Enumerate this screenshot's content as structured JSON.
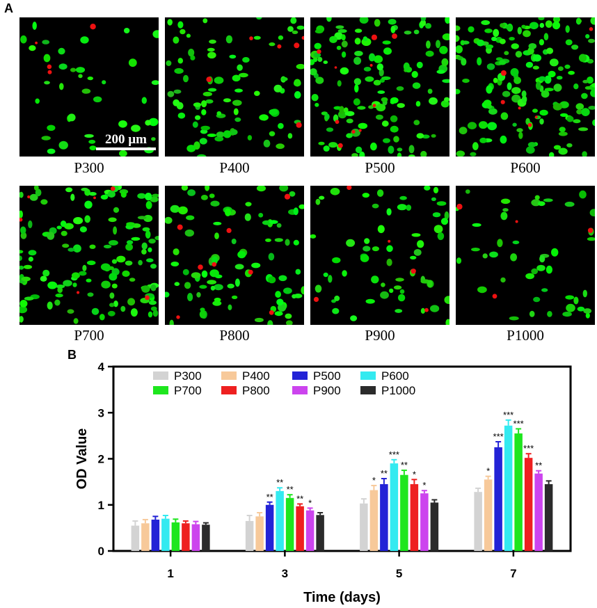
{
  "panel_a": {
    "letter": "A",
    "scale_bar_label": "200 µm",
    "images": [
      {
        "label": "P300",
        "density": 0.35,
        "red_spots": 4
      },
      {
        "label": "P400",
        "density": 0.75,
        "red_spots": 6
      },
      {
        "label": "P500",
        "density": 1.15,
        "red_spots": 10
      },
      {
        "label": "P600",
        "density": 1.4,
        "red_spots": 6
      },
      {
        "label": "P700",
        "density": 1.2,
        "red_spots": 6
      },
      {
        "label": "P800",
        "density": 0.8,
        "red_spots": 8
      },
      {
        "label": "P900",
        "density": 0.55,
        "red_spots": 5
      },
      {
        "label": "P1000",
        "density": 0.4,
        "red_spots": 4
      }
    ]
  },
  "panel_b": {
    "letter": "B",
    "chart_data": {
      "type": "bar",
      "categories": [
        "1",
        "3",
        "5",
        "7"
      ],
      "xlabel": "Time (days)",
      "ylabel": "OD Value",
      "ylim": [
        0,
        4
      ],
      "yticks": [
        "0",
        "1",
        "2",
        "3",
        "4"
      ],
      "legend_placement": "top",
      "series": [
        {
          "name": "P300",
          "color": "#d3d3d3",
          "values": [
            0.55,
            0.65,
            1.03,
            1.28
          ],
          "errors": [
            0.1,
            0.12,
            0.1,
            0.08
          ],
          "sig": [
            "",
            "",
            "",
            ""
          ]
        },
        {
          "name": "P400",
          "color": "#f7c99a",
          "values": [
            0.6,
            0.75,
            1.32,
            1.55
          ],
          "errors": [
            0.08,
            0.08,
            0.1,
            0.07
          ],
          "sig": [
            "",
            "",
            "*",
            "*"
          ]
        },
        {
          "name": "P500",
          "color": "#2323d6",
          "values": [
            0.68,
            1.0,
            1.45,
            2.25
          ],
          "errors": [
            0.07,
            0.06,
            0.12,
            0.12
          ],
          "sig": [
            "",
            "**",
            "**",
            "***"
          ]
        },
        {
          "name": "P600",
          "color": "#33eaf0",
          "values": [
            0.7,
            1.3,
            1.9,
            2.72
          ],
          "errors": [
            0.07,
            0.07,
            0.08,
            0.12
          ],
          "sig": [
            "",
            "**",
            "***",
            "***"
          ]
        },
        {
          "name": "P700",
          "color": "#1ee61e",
          "values": [
            0.62,
            1.15,
            1.65,
            2.55
          ],
          "errors": [
            0.07,
            0.07,
            0.1,
            0.1
          ],
          "sig": [
            "",
            "**",
            "**",
            "***"
          ]
        },
        {
          "name": "P800",
          "color": "#ee2020",
          "values": [
            0.6,
            0.97,
            1.45,
            2.02
          ],
          "errors": [
            0.05,
            0.05,
            0.1,
            0.09
          ],
          "sig": [
            "",
            "**",
            "*",
            "***"
          ]
        },
        {
          "name": "P900",
          "color": "#cc44ee",
          "values": [
            0.58,
            0.88,
            1.25,
            1.68
          ],
          "errors": [
            0.06,
            0.05,
            0.06,
            0.06
          ],
          "sig": [
            "",
            "*",
            "*",
            "**"
          ]
        },
        {
          "name": "P1000",
          "color": "#2b2b2b",
          "values": [
            0.57,
            0.78,
            1.05,
            1.45
          ],
          "errors": [
            0.04,
            0.05,
            0.06,
            0.07
          ],
          "sig": [
            "",
            "",
            "",
            ""
          ]
        }
      ]
    }
  }
}
